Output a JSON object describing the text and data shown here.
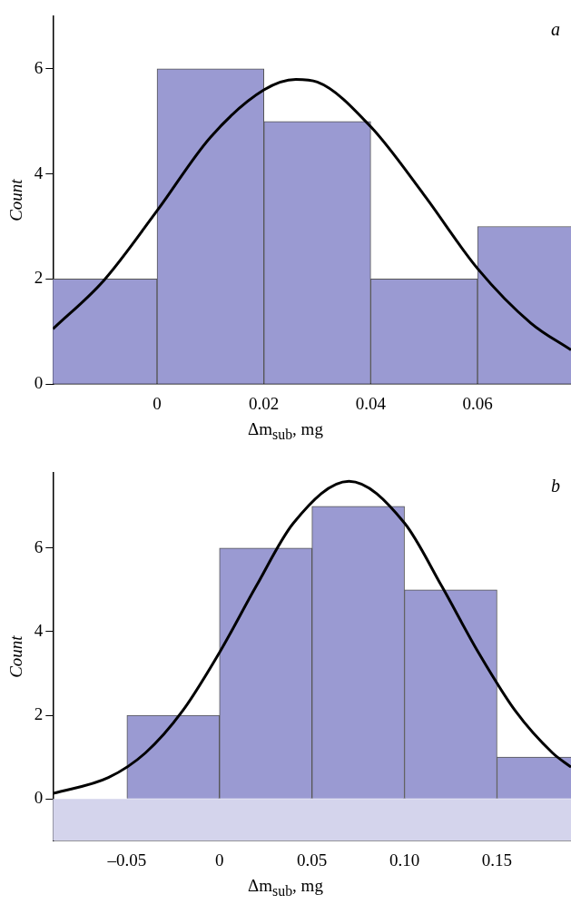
{
  "chart_data": [
    {
      "type": "histogram",
      "bins": [
        -0.02,
        0,
        0.02,
        0.04,
        0.06,
        0.08
      ],
      "values": [
        2,
        6,
        5,
        2,
        3
      ],
      "color": "#9a9ad2",
      "series": [
        {
          "type": "line",
          "color": "#000000",
          "x": [
            -0.0195,
            -0.01,
            0,
            0.01,
            0.02,
            0.026,
            0.03,
            0.04,
            0.05,
            0.06,
            0.07,
            0.0775
          ],
          "values": [
            1.05,
            1.97,
            3.3,
            4.7,
            5.6,
            5.8,
            5.75,
            4.9,
            3.6,
            2.2,
            1.16,
            0.65
          ]
        }
      ],
      "xlim": [
        -0.0195,
        0.0775
      ],
      "ylim": [
        0,
        7
      ],
      "xticks": [
        0,
        0.02,
        0.04,
        0.06
      ],
      "yticks": [
        0,
        2,
        4,
        6
      ],
      "xlabel": "Δm$_{sub}$, mg",
      "ylabel": "Count",
      "annotations": [
        "a"
      ],
      "grid": false,
      "legend": false
    },
    {
      "type": "histogram",
      "bins": [
        -0.1,
        -0.05,
        0,
        0.05,
        0.1,
        0.15,
        0.2
      ],
      "values": [
        0,
        2,
        6,
        7,
        5,
        1
      ],
      "color": "#9a9ad2",
      "series": [
        {
          "type": "line",
          "color": "#000000",
          "x": [
            -0.09,
            -0.06,
            -0.04,
            -0.02,
            0,
            0.02,
            0.04,
            0.07,
            0.1,
            0.12,
            0.14,
            0.16,
            0.18,
            0.19
          ],
          "values": [
            0.13,
            0.51,
            1.1,
            2.1,
            3.5,
            5.1,
            6.6,
            7.6,
            6.6,
            5.1,
            3.5,
            2.1,
            1.1,
            0.76
          ]
        }
      ],
      "bands": [
        {
          "axis": "y",
          "from": -1,
          "to": 0,
          "color": "#d4d4ec"
        }
      ],
      "xlim": [
        -0.09,
        0.19
      ],
      "ylim": [
        -1,
        7.8
      ],
      "xticks": [
        {
          "value": -0.05,
          "label": "–0.05"
        },
        0,
        0.05,
        {
          "value": 0.1,
          "label": "0.10"
        },
        0.15
      ],
      "yticks": [
        0,
        2,
        4,
        6
      ],
      "xlabel": "Δm$_{sub}$, mg",
      "ylabel": "Count",
      "annotations": [
        "b"
      ],
      "grid": false,
      "legend": false
    }
  ]
}
